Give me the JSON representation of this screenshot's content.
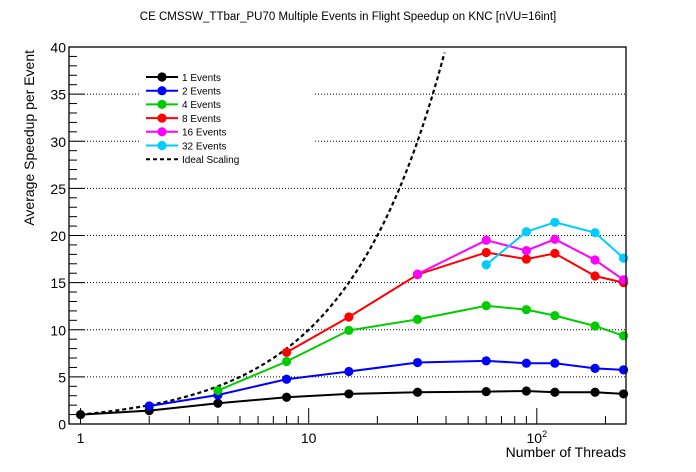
{
  "chart_data": {
    "type": "line",
    "title": "CE CMSSW_TTbar_PU70 Multiple Events in Flight Speedup on KNC [nVU=16int]",
    "xlabel": "Number of Threads",
    "ylabel": "Average Speedup per Event",
    "xscale": "log",
    "xlim": [
      0.89,
      246
    ],
    "ylim": [
      0,
      40
    ],
    "grid": "horizontal dotted",
    "legend_position": "top-left",
    "x_ticks": [
      {
        "value": 1,
        "label": "1"
      },
      {
        "value": 10,
        "label": "10"
      },
      {
        "value": 100,
        "label": "10",
        "sup": "2"
      }
    ],
    "y_ticks": [
      0,
      5,
      10,
      15,
      20,
      25,
      30,
      35,
      40
    ],
    "series": [
      {
        "name": "1 Events",
        "color": "#000000",
        "x": [
          1,
          2,
          4,
          8,
          15,
          30,
          60,
          90,
          120,
          180,
          240
        ],
        "values": [
          1.0,
          1.42,
          2.2,
          2.84,
          3.19,
          3.37,
          3.44,
          3.5,
          3.37,
          3.37,
          3.19
        ]
      },
      {
        "name": "2 Events",
        "color": "#0000ff",
        "x": [
          2,
          4,
          8,
          15,
          30,
          60,
          90,
          120,
          180,
          240
        ],
        "values": [
          1.91,
          3.08,
          4.75,
          5.57,
          6.52,
          6.7,
          6.45,
          6.45,
          5.9,
          5.74
        ]
      },
      {
        "name": "4 Events",
        "color": "#00cc00",
        "x": [
          4,
          8,
          15,
          30,
          60,
          90,
          120,
          180,
          240
        ],
        "values": [
          3.55,
          6.63,
          9.93,
          11.1,
          12.55,
          12.13,
          11.5,
          10.4,
          9.36
        ]
      },
      {
        "name": "8 Events",
        "color": "#ff0000",
        "x": [
          8,
          15,
          30,
          60,
          90,
          120,
          180,
          240
        ],
        "values": [
          7.6,
          11.35,
          15.85,
          18.2,
          17.5,
          18.1,
          15.7,
          15.0
        ]
      },
      {
        "name": "16 Events",
        "color": "#ff00ff",
        "x": [
          30,
          60,
          90,
          120,
          180,
          240
        ],
        "values": [
          15.9,
          19.5,
          18.4,
          19.6,
          17.4,
          15.3
        ]
      },
      {
        "name": "32 Events",
        "color": "#00ccff",
        "x": [
          60,
          90,
          120,
          180,
          240
        ],
        "values": [
          16.9,
          20.4,
          21.4,
          20.3,
          17.6
        ]
      }
    ],
    "ideal": {
      "name": "Ideal Scaling",
      "color": "#000000",
      "style": "dashed",
      "x_range": [
        1,
        39.4
      ],
      "formula": "y = x"
    }
  }
}
